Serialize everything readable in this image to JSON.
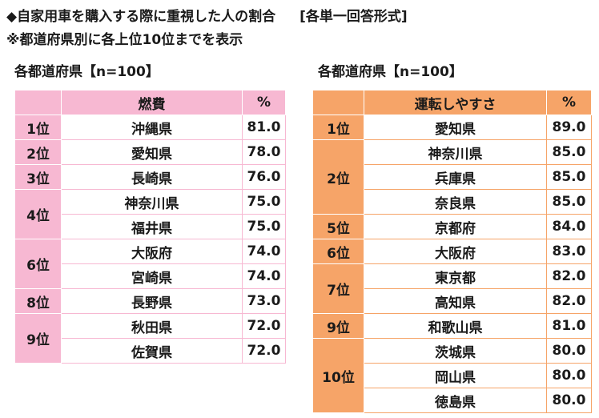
{
  "title": {
    "line1_main": "◆自家用車を購入する際に重視した人の割合",
    "line1_note": "[各単一回答形式]",
    "line2": "※都道府県別に各上位10位までを表示"
  },
  "left": {
    "subtitle": "各都道府県【n=100】",
    "header": {
      "rank": "",
      "pref": "燃費",
      "value": "%"
    },
    "accent_color": "#f7b8d2",
    "groups": [
      {
        "rank": "1位",
        "rows": [
          {
            "pref": "沖縄県",
            "value": "81.0"
          }
        ]
      },
      {
        "rank": "2位",
        "rows": [
          {
            "pref": "愛知県",
            "value": "78.0"
          }
        ]
      },
      {
        "rank": "3位",
        "rows": [
          {
            "pref": "長崎県",
            "value": "76.0"
          }
        ]
      },
      {
        "rank": "4位",
        "rows": [
          {
            "pref": "神奈川県",
            "value": "75.0"
          },
          {
            "pref": "福井県",
            "value": "75.0"
          }
        ]
      },
      {
        "rank": "6位",
        "rows": [
          {
            "pref": "大阪府",
            "value": "74.0"
          },
          {
            "pref": "宮崎県",
            "value": "74.0"
          }
        ]
      },
      {
        "rank": "8位",
        "rows": [
          {
            "pref": "長野県",
            "value": "73.0"
          }
        ]
      },
      {
        "rank": "9位",
        "rows": [
          {
            "pref": "秋田県",
            "value": "72.0"
          },
          {
            "pref": "佐賀県",
            "value": "72.0"
          }
        ]
      }
    ]
  },
  "right": {
    "subtitle": "各都道府県【n=100】",
    "header": {
      "rank": "",
      "pref": "運転しやすさ",
      "value": "%"
    },
    "accent_color": "#f6a468",
    "groups": [
      {
        "rank": "1位",
        "rows": [
          {
            "pref": "愛知県",
            "value": "89.0"
          }
        ]
      },
      {
        "rank": "2位",
        "rows": [
          {
            "pref": "神奈川県",
            "value": "85.0"
          },
          {
            "pref": "兵庫県",
            "value": "85.0"
          },
          {
            "pref": "奈良県",
            "value": "85.0"
          }
        ]
      },
      {
        "rank": "5位",
        "rows": [
          {
            "pref": "京都府",
            "value": "84.0"
          }
        ]
      },
      {
        "rank": "6位",
        "rows": [
          {
            "pref": "大阪府",
            "value": "83.0"
          }
        ]
      },
      {
        "rank": "7位",
        "rows": [
          {
            "pref": "東京都",
            "value": "82.0"
          },
          {
            "pref": "高知県",
            "value": "82.0"
          }
        ]
      },
      {
        "rank": "9位",
        "rows": [
          {
            "pref": "和歌山県",
            "value": "81.0"
          }
        ]
      },
      {
        "rank": "10位",
        "rows": [
          {
            "pref": "茨城県",
            "value": "80.0"
          },
          {
            "pref": "岡山県",
            "value": "80.0"
          },
          {
            "pref": "徳島県",
            "value": "80.0"
          }
        ]
      }
    ]
  }
}
